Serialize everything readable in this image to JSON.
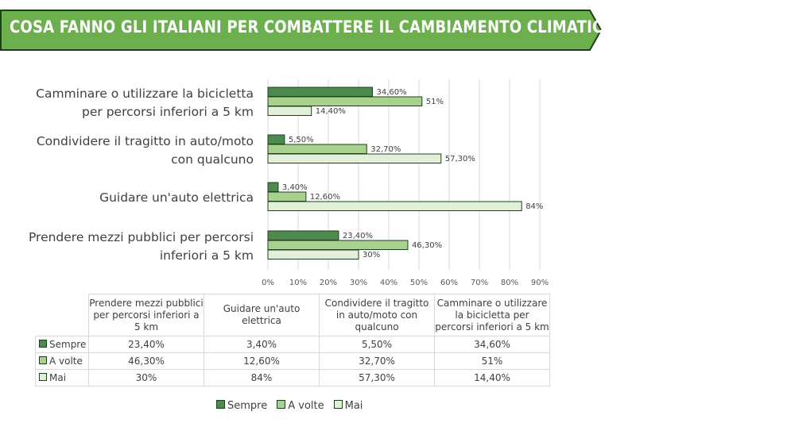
{
  "banner": {
    "title": "COSA FANNO GLI ITALIANI PER COMBATTERE IL CAMBIAMENTO CLIMATICO?"
  },
  "colors": {
    "banner": "#6cb04e",
    "sempre": "#4e8a4e",
    "a_volte": "#a9d18e",
    "mai": "#e2f0d9",
    "border": "#1e3f1e"
  },
  "chart_data": {
    "type": "bar",
    "orientation": "horizontal",
    "title": "COSA FANNO GLI ITALIANI PER COMBATTERE IL CAMBIAMENTO CLIMATICO?",
    "categories": [
      {
        "line1": "Camminare o utilizzare la bicicletta",
        "line2": "per percorsi inferiori a 5 km"
      },
      {
        "line1": "Condividere il tragitto in auto/moto",
        "line2": "con qualcuno"
      },
      {
        "line1": "Guidare un'auto elettrica",
        "line2": ""
      },
      {
        "line1": "Prendere mezzi pubblici per percorsi",
        "line2": "inferiori a 5 km"
      }
    ],
    "series": [
      {
        "name": "Sempre",
        "values": [
          34.6,
          5.5,
          3.4,
          23.4
        ],
        "labels": [
          "34,60%",
          "5,50%",
          "3,40%",
          "23,40%"
        ]
      },
      {
        "name": "A volte",
        "values": [
          51,
          32.7,
          12.6,
          46.3
        ],
        "labels": [
          "51%",
          "32,70%",
          "12,60%",
          "46,30%"
        ]
      },
      {
        "name": "Mai",
        "values": [
          14.4,
          57.3,
          84,
          30
        ],
        "labels": [
          "14,40%",
          "57,30%",
          "84%",
          "30%"
        ]
      }
    ],
    "xlim": [
      0,
      90
    ],
    "xticks": [
      "0%",
      "10%",
      "20%",
      "30%",
      "40%",
      "50%",
      "60%",
      "70%",
      "80%",
      "90%"
    ],
    "grid": true,
    "legend_position": "bottom"
  },
  "table": {
    "headers": [
      "Prendere mezzi pubblici per percorsi inferiori a 5 km",
      "Guidare un'auto elettrica",
      "Condividere il tragitto in auto/moto con qualcuno",
      "Camminare o utilizzare la bicicletta per percorsi inferiori a 5 km"
    ],
    "rows": [
      {
        "name": "Sempre",
        "values": [
          "23,40%",
          "3,40%",
          "5,50%",
          "34,60%"
        ]
      },
      {
        "name": "A volte",
        "values": [
          "46,30%",
          "12,60%",
          "32,70%",
          "51%"
        ]
      },
      {
        "name": "Mai",
        "values": [
          "30%",
          "84%",
          "57,30%",
          "14,40%"
        ]
      }
    ]
  },
  "legend": [
    "Sempre",
    "A volte",
    "Mai"
  ]
}
